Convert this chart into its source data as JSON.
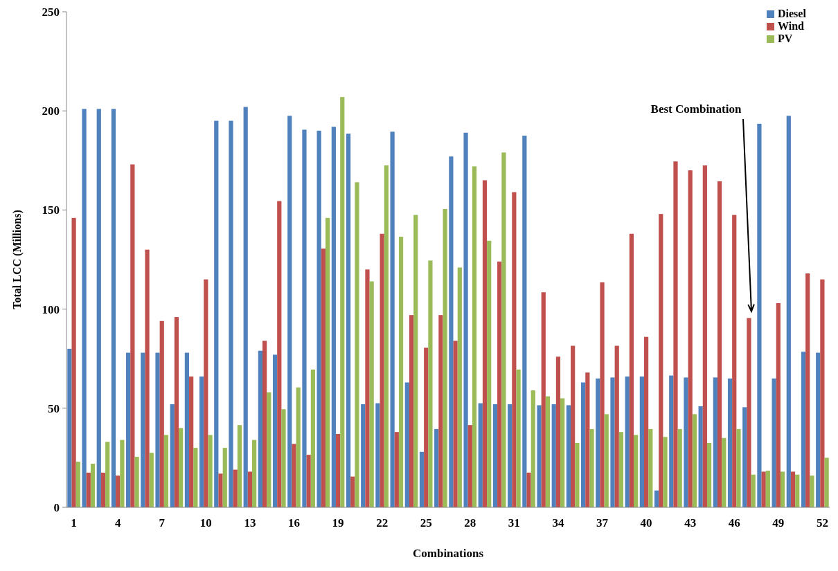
{
  "chart_data": {
    "type": "bar",
    "xlabel": "Combinations",
    "ylabel": "Total LCC (Millions)",
    "categories": [
      "1",
      null,
      null,
      "4",
      null,
      null,
      "7",
      null,
      null,
      "10",
      null,
      null,
      "13",
      null,
      null,
      "16",
      null,
      null,
      "19",
      null,
      null,
      "22",
      null,
      null,
      "25",
      null,
      null,
      "28",
      null,
      null,
      "31",
      null,
      null,
      "34",
      null,
      null,
      "37",
      null,
      null,
      "40",
      null,
      null,
      "43",
      null,
      null,
      "46",
      null,
      null,
      "49",
      null,
      null,
      "52"
    ],
    "series": [
      {
        "name": "Diesel",
        "color": "#4f81bd",
        "values": [
          80,
          201,
          201,
          201,
          78,
          78,
          78,
          52,
          78,
          66,
          195,
          195,
          202,
          79,
          77,
          197.5,
          190.5,
          190,
          192,
          188.5,
          52,
          52.5,
          189.5,
          63,
          28,
          39.5,
          177,
          189,
          52.5,
          52,
          52,
          187.5,
          51.5,
          52,
          51.5,
          63,
          65,
          65.5,
          66,
          66,
          8.5,
          66.5,
          65.5,
          51,
          65.5,
          65,
          50.5,
          193.5,
          65,
          197.5,
          78.5,
          78
        ]
      },
      {
        "name": "Wind",
        "color": "#c0504d",
        "values": [
          146,
          17.5,
          17.5,
          16,
          173,
          130,
          94,
          96,
          66,
          115,
          17,
          19,
          18,
          84,
          154.5,
          32,
          26.5,
          130.5,
          37,
          15.5,
          120,
          138,
          38,
          97,
          80.5,
          97,
          84,
          41.5,
          165,
          124,
          159,
          17.5,
          108.5,
          76,
          81.5,
          68,
          113.5,
          81.5,
          138,
          86,
          148,
          174.5,
          170,
          172.5,
          164.5,
          147.5,
          95.5,
          18,
          103,
          18,
          118,
          115
        ]
      },
      {
        "name": "PV",
        "color": "#9bbb59",
        "values": [
          23,
          22,
          33,
          34,
          25.5,
          27.5,
          36.5,
          40,
          30,
          36.5,
          30,
          41.5,
          34,
          58,
          49.5,
          60.5,
          69.5,
          146,
          207,
          164,
          114,
          172.5,
          136.5,
          147.5,
          124.5,
          150.5,
          121,
          172,
          134.5,
          179,
          69.5,
          59,
          56,
          55,
          32.5,
          39.5,
          47,
          38,
          36.5,
          39.5,
          35.5,
          39.5,
          47,
          32.5,
          35,
          39.5,
          16.5,
          18.5,
          18,
          16.5,
          16,
          25
        ]
      }
    ],
    "ylim": [
      0,
      250
    ],
    "yticks": [
      0,
      50,
      100,
      150,
      200,
      250
    ],
    "grid": false,
    "legend": "top right",
    "annotations": [
      "Best Combination"
    ]
  }
}
